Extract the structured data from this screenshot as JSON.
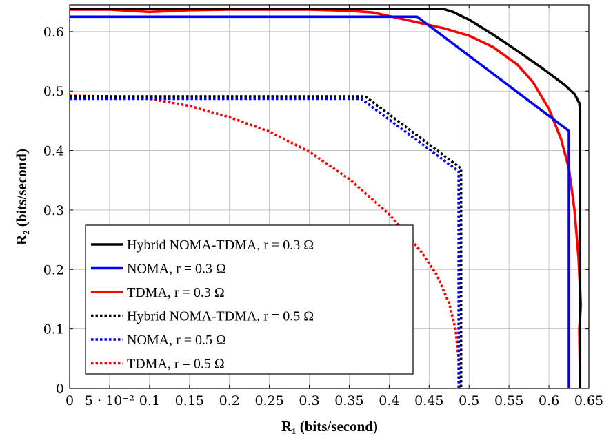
{
  "chart_data": {
    "type": "line",
    "xlabel": "R₁ (bits/second)",
    "ylabel": "R₂ (bits/second)",
    "xlim": [
      0,
      0.65
    ],
    "ylim": [
      0,
      0.645
    ],
    "grid": true,
    "legend_position": "bottom-left",
    "x_ticks": [
      {
        "value": 0,
        "label": "0"
      },
      {
        "value": 0.05,
        "label": "5 · 10⁻²"
      },
      {
        "value": 0.1,
        "label": "0.1"
      },
      {
        "value": 0.15,
        "label": "0.15"
      },
      {
        "value": 0.2,
        "label": "0.2"
      },
      {
        "value": 0.25,
        "label": "0.25"
      },
      {
        "value": 0.3,
        "label": "0.3"
      },
      {
        "value": 0.35,
        "label": "0.35"
      },
      {
        "value": 0.4,
        "label": "0.4"
      },
      {
        "value": 0.45,
        "label": "0.45"
      },
      {
        "value": 0.5,
        "label": "0.5"
      },
      {
        "value": 0.55,
        "label": "0.55"
      },
      {
        "value": 0.6,
        "label": "0.6"
      },
      {
        "value": 0.65,
        "label": "0.65"
      }
    ],
    "y_ticks": [
      {
        "value": 0,
        "label": "0"
      },
      {
        "value": 0.1,
        "label": "0.1"
      },
      {
        "value": 0.2,
        "label": "0.2"
      },
      {
        "value": 0.3,
        "label": "0.3"
      },
      {
        "value": 0.4,
        "label": "0.4"
      },
      {
        "value": 0.5,
        "label": "0.5"
      },
      {
        "value": 0.6,
        "label": "0.6"
      }
    ],
    "series": [
      {
        "name": "Hybrid NOMA-TDMA, r = 0.3 Ω",
        "color": "#000000",
        "dashed": false,
        "points": [
          [
            0,
            0.638
          ],
          [
            0.468,
            0.638
          ],
          [
            0.48,
            0.633
          ],
          [
            0.5,
            0.62
          ],
          [
            0.53,
            0.595
          ],
          [
            0.56,
            0.568
          ],
          [
            0.59,
            0.54
          ],
          [
            0.62,
            0.51
          ],
          [
            0.632,
            0.495
          ],
          [
            0.638,
            0.48
          ],
          [
            0.639,
            0.47
          ],
          [
            0.639,
            0
          ]
        ]
      },
      {
        "name": "NOMA, r = 0.3 Ω",
        "color": "#0000ff",
        "dashed": false,
        "points": [
          [
            0,
            0.625
          ],
          [
            0.435,
            0.625
          ],
          [
            0.625,
            0.433
          ],
          [
            0.625,
            0
          ]
        ]
      },
      {
        "name": "TDMA, r = 0.3 Ω",
        "color": "#ff0000",
        "dashed": false,
        "points": [
          [
            0,
            0.637
          ],
          [
            0.05,
            0.637
          ],
          [
            0.1,
            0.633
          ],
          [
            0.15,
            0.636
          ],
          [
            0.2,
            0.637
          ],
          [
            0.25,
            0.637
          ],
          [
            0.3,
            0.637
          ],
          [
            0.35,
            0.635
          ],
          [
            0.38,
            0.632
          ],
          [
            0.41,
            0.623
          ],
          [
            0.44,
            0.614
          ],
          [
            0.47,
            0.605
          ],
          [
            0.5,
            0.593
          ],
          [
            0.53,
            0.574
          ],
          [
            0.56,
            0.545
          ],
          [
            0.58,
            0.515
          ],
          [
            0.6,
            0.47
          ],
          [
            0.615,
            0.42
          ],
          [
            0.625,
            0.37
          ],
          [
            0.632,
            0.3
          ],
          [
            0.637,
            0.22
          ],
          [
            0.64,
            0.14
          ],
          [
            0.638,
            0.1
          ],
          [
            0.639,
            0
          ]
        ]
      },
      {
        "name": "Hybrid NOMA-TDMA, r = 0.5 Ω",
        "color": "#000000",
        "dashed": true,
        "points": [
          [
            0,
            0.491
          ],
          [
            0.37,
            0.491
          ],
          [
            0.49,
            0.37
          ],
          [
            0.49,
            0
          ]
        ]
      },
      {
        "name": "NOMA, r = 0.5 Ω",
        "color": "#0000ff",
        "dashed": true,
        "points": [
          [
            0,
            0.487
          ],
          [
            0.365,
            0.487
          ],
          [
            0.487,
            0.365
          ],
          [
            0.487,
            0
          ]
        ]
      },
      {
        "name": "TDMA, r = 0.5 Ω",
        "color": "#ff0000",
        "dashed": true,
        "points": [
          [
            0,
            0.492
          ],
          [
            0.05,
            0.491
          ],
          [
            0.1,
            0.487
          ],
          [
            0.15,
            0.475
          ],
          [
            0.2,
            0.456
          ],
          [
            0.25,
            0.432
          ],
          [
            0.3,
            0.398
          ],
          [
            0.35,
            0.352
          ],
          [
            0.4,
            0.293
          ],
          [
            0.44,
            0.23
          ],
          [
            0.46,
            0.19
          ],
          [
            0.475,
            0.143
          ],
          [
            0.483,
            0.1
          ],
          [
            0.487,
            0.05
          ],
          [
            0.488,
            0
          ]
        ]
      }
    ]
  }
}
